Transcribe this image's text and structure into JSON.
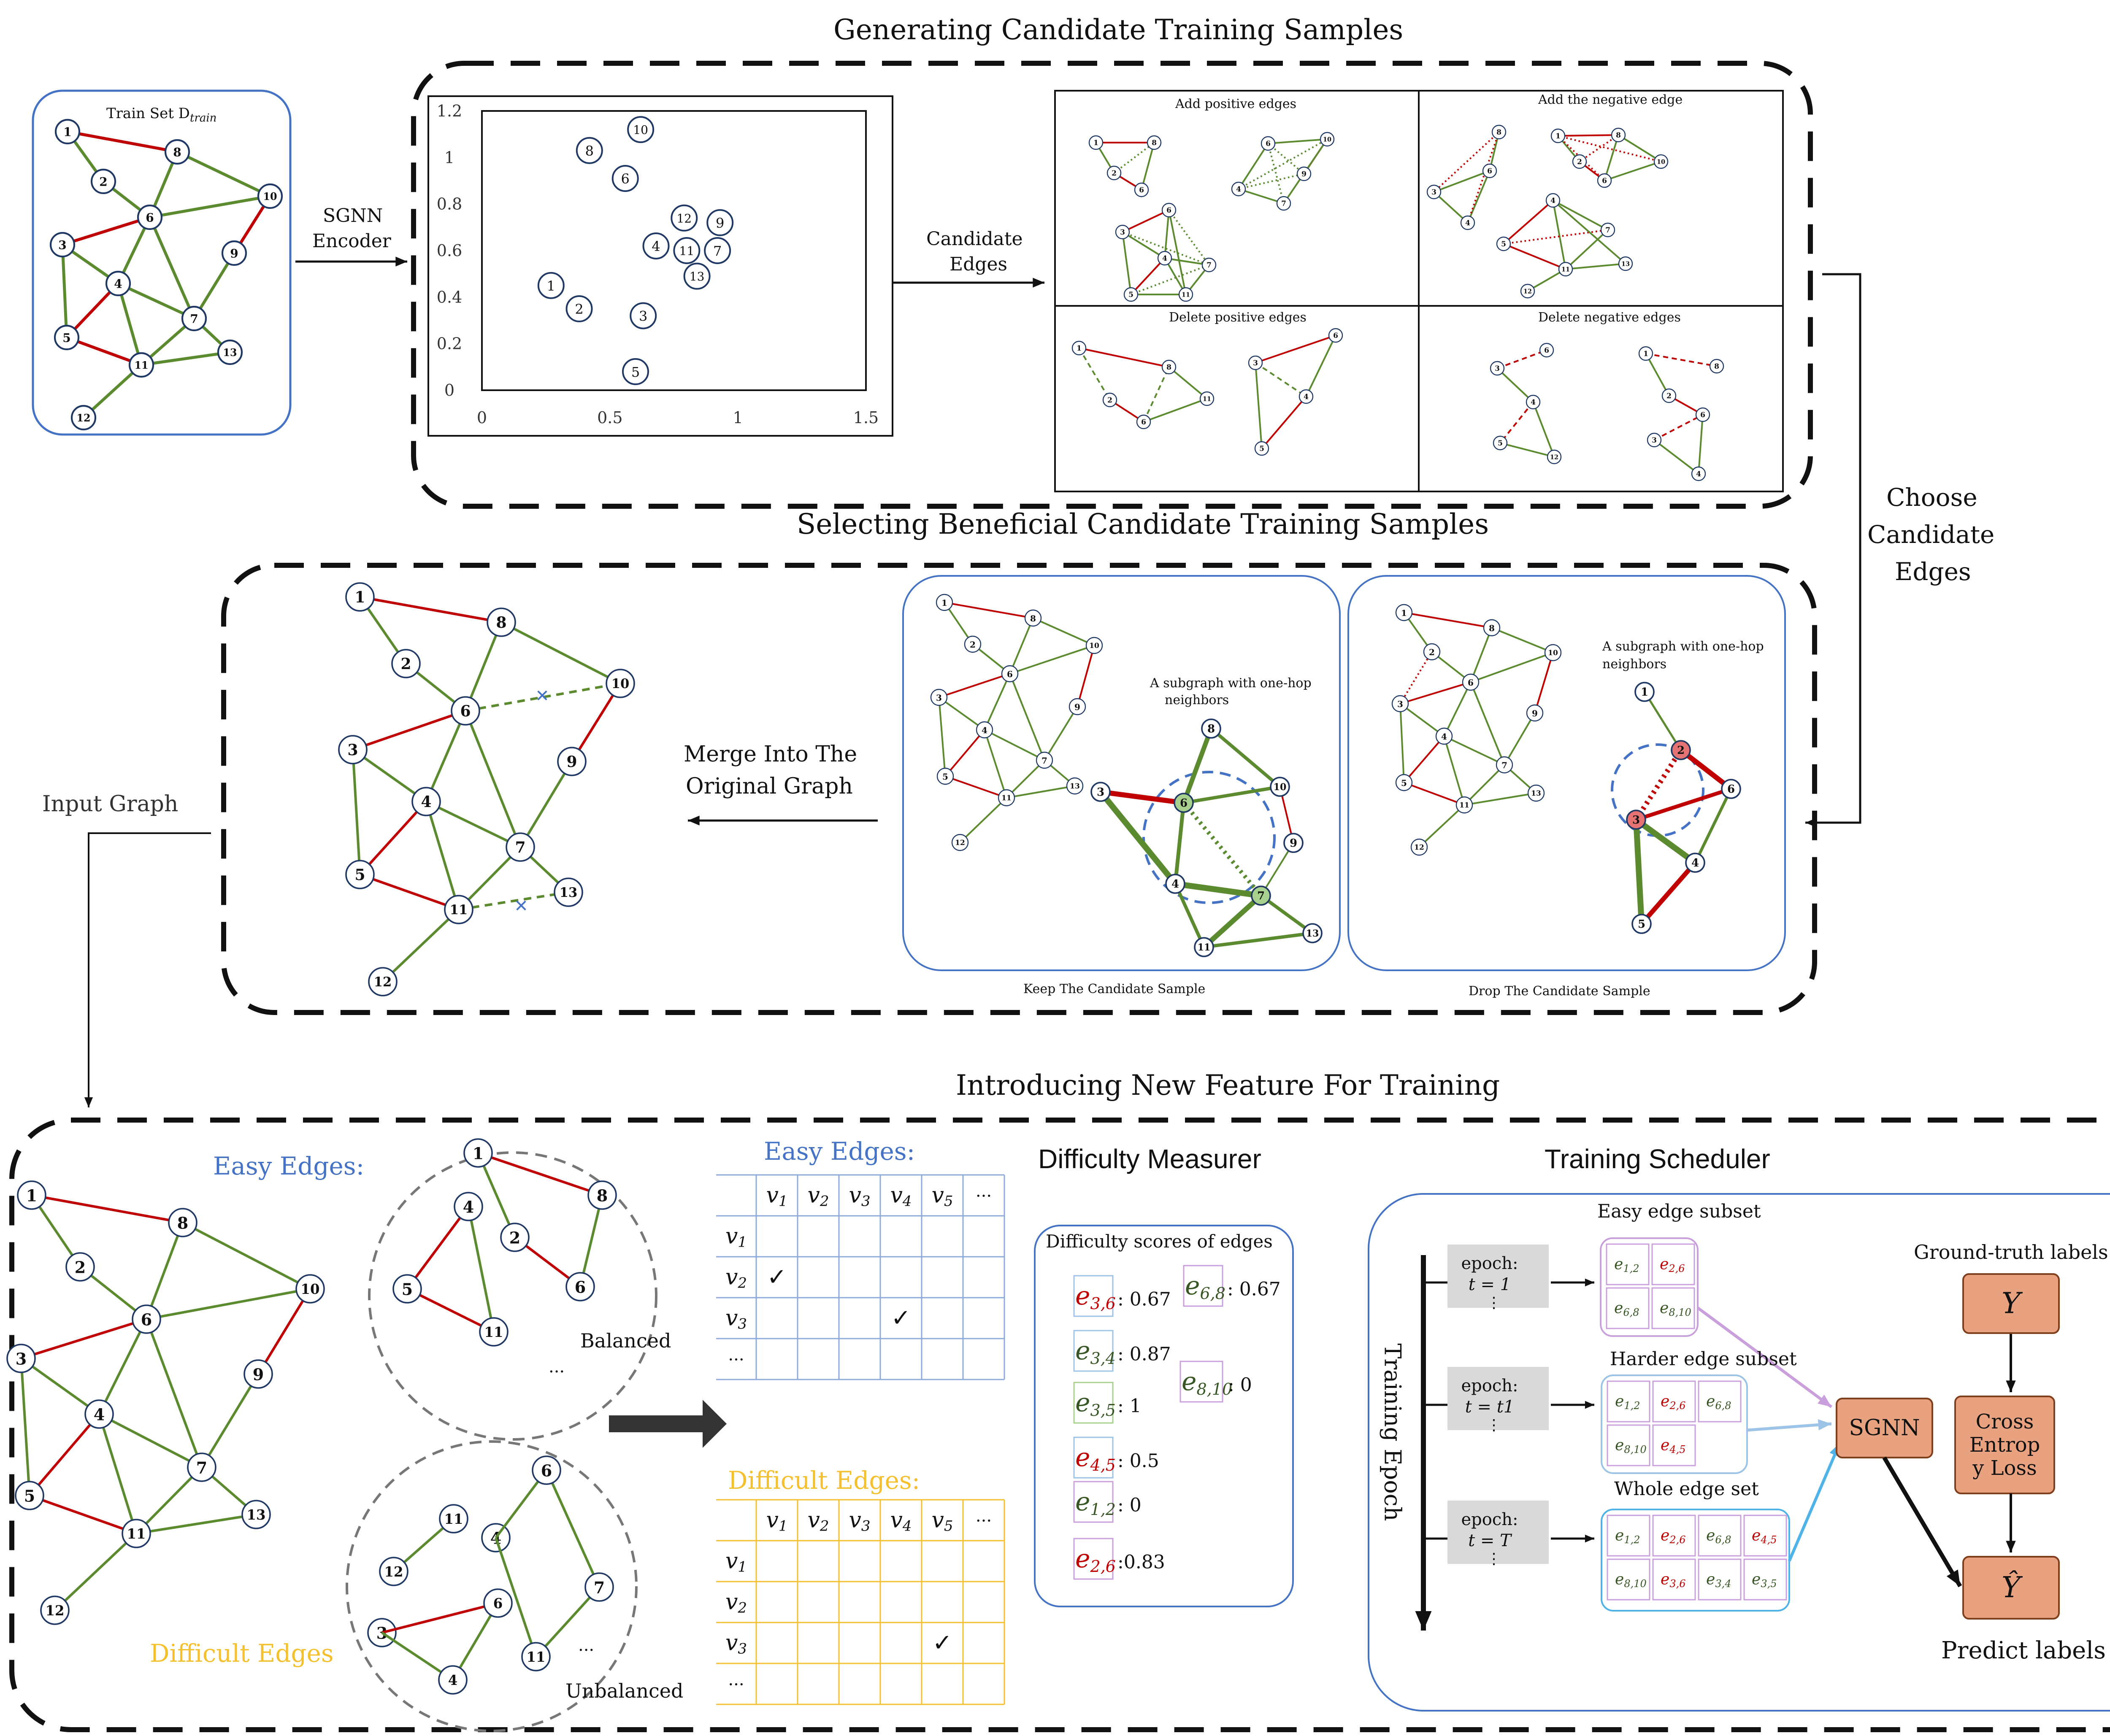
{
  "titles": {
    "generating": "Generating Candidate Training Samples",
    "selecting": "Selecting Beneficial Candidate Training Samples",
    "introducing": "Introducing New Feature For Training"
  },
  "train_set": {
    "label": "Train Set D",
    "label_sub": "train",
    "nodes": [
      "1",
      "2",
      "3",
      "4",
      "5",
      "6",
      "7",
      "8",
      "9",
      "10",
      "11",
      "12",
      "13"
    ]
  },
  "encoder": {
    "line1": "SGNN",
    "line2": "Encoder"
  },
  "scatter": {
    "x_ticks": [
      "0",
      "0.5",
      "1",
      "1.5"
    ],
    "y_ticks": [
      "0",
      "0.2",
      "0.4",
      "0.6",
      "0.8",
      "1",
      "1.2"
    ],
    "points": [
      {
        "label": "1",
        "x": 0.27,
        "y": 0.45
      },
      {
        "label": "2",
        "x": 0.38,
        "y": 0.35
      },
      {
        "label": "3",
        "x": 0.63,
        "y": 0.32
      },
      {
        "label": "4",
        "x": 0.68,
        "y": 0.62
      },
      {
        "label": "5",
        "x": 0.6,
        "y": 0.08
      },
      {
        "label": "6",
        "x": 0.56,
        "y": 0.91
      },
      {
        "label": "7",
        "x": 0.92,
        "y": 0.6
      },
      {
        "label": "8",
        "x": 0.42,
        "y": 1.03
      },
      {
        "label": "9",
        "x": 0.93,
        "y": 0.72
      },
      {
        "label": "10",
        "x": 0.62,
        "y": 1.12
      },
      {
        "label": "11",
        "x": 0.8,
        "y": 0.6
      },
      {
        "label": "12",
        "x": 0.79,
        "y": 0.74
      },
      {
        "label": "13",
        "x": 0.84,
        "y": 0.49
      }
    ]
  },
  "candidate_edges": {
    "line1": "Candidate",
    "line2": "Edges"
  },
  "candidate_panels": {
    "add_pos": "Add positive edges",
    "add_neg": "Add the negative edge",
    "del_pos": "Delete positive edges",
    "del_neg": "Delete negative edges"
  },
  "choose": {
    "line1": "Choose",
    "line2": "Candidate",
    "line3": "Edges"
  },
  "merge": {
    "line1": "Merge Into The",
    "line2": "Original Graph"
  },
  "input_graph": "Input Graph",
  "keep_panel": {
    "subgraph1": "A subgraph with one-hop",
    "subgraph2": "neighbors",
    "caption": "Keep The Candidate Sample"
  },
  "drop_panel": {
    "subgraph1": "A subgraph with one-hop",
    "subgraph2": "neighbors",
    "caption": "Drop The Candidate Sample"
  },
  "easy_edges": "Easy Edges:",
  "difficult_edges": "Difficult Edges",
  "difficult_edges_colon": "Difficult Edges:",
  "balanced": "Balanced",
  "unbalanced": "Unbalanced",
  "ellipsis": "...",
  "matrix": {
    "cols": [
      "v1",
      "v2",
      "v3",
      "v4",
      "v5",
      "..."
    ],
    "rows": [
      "v1",
      "v2",
      "v3",
      "..."
    ],
    "check": "✓"
  },
  "difficulty": {
    "title": "Difficulty Measurer",
    "box_title": "Difficulty scores of edges",
    "scores": [
      {
        "edge": "e3,6",
        "value": ": 0.67"
      },
      {
        "edge": "e6,8",
        "value": ": 0.67"
      },
      {
        "edge": "e3,4",
        "value": ": 0.87"
      },
      {
        "edge": "e8,10",
        "value": ": 0"
      },
      {
        "edge": "e3,5",
        "value": ": 1"
      },
      {
        "edge": "e4,5",
        "value": ": 0.5"
      },
      {
        "edge": "e1,2",
        "value": ": 0"
      },
      {
        "edge": "e2,6",
        "value": ":0.83"
      }
    ]
  },
  "scheduler": {
    "title": "Training Scheduler",
    "axis": "Training Epoch",
    "easy_subset": "Easy edge subset",
    "harder_subset": "Harder edge subset",
    "whole_set": "Whole edge set",
    "epoch_word": "epoch:",
    "epoch_values": [
      "t = 1",
      "t = t1",
      "t = T"
    ],
    "dots": "⋮",
    "easy_edges": [
      "e1,2",
      "e2,6",
      "e6,8",
      "e8,10"
    ],
    "harder_edges": [
      "e1,2",
      "e2,6",
      "e6,8",
      "e8,10",
      "e4,5"
    ],
    "whole_edges": [
      "e1,2",
      "e2,6",
      "e6,8",
      "e4,5",
      "e8,10",
      "e3,6",
      "e3,4",
      "e3,5"
    ],
    "sgnn": "SGNN",
    "gt_label": "Ground-truth labels",
    "y": "Y",
    "loss": [
      "Cross",
      "Entrop",
      "y Loss"
    ],
    "yhat": "Ŷ",
    "predict": "Predict labels"
  },
  "colors": {
    "positive_edge": "#5b8a2f",
    "negative_edge": "#c00000",
    "node_ring": "#1f3864",
    "frame": "#4472c4",
    "orange_box": "#e8a27f",
    "easy_blue": "#4472c4",
    "difficult_yellow": "#f5c02d"
  }
}
